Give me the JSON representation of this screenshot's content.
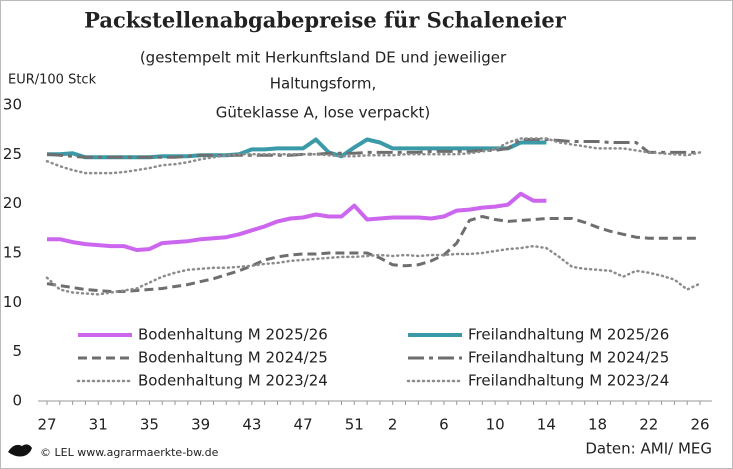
{
  "chart_data": {
    "type": "line",
    "title": "Packstellenabgabepreise für Schaleneier",
    "subtitle": [
      "(gestempelt mit Herkunftsland DE und jeweiliger",
      "Haltungsform,",
      "Güteklasse A, lose verpackt)"
    ],
    "y_label": "EUR/100 Stck",
    "source": "Daten: AMI/ MEG",
    "footer": "© LEL www.agrarmaerkte-bw.de",
    "categories": [
      "27",
      null,
      null,
      null,
      "31",
      null,
      null,
      null,
      "35",
      null,
      null,
      null,
      "39",
      null,
      null,
      null,
      "43",
      null,
      null,
      null,
      "47",
      null,
      null,
      null,
      "51",
      null,
      null,
      "2",
      null,
      null,
      null,
      "6",
      null,
      null,
      null,
      "10",
      null,
      null,
      null,
      "14",
      null,
      null,
      null,
      "18",
      null,
      null,
      null,
      "22",
      null,
      null,
      null,
      "26"
    ],
    "ylim": [
      0,
      30
    ],
    "yticks": [
      0,
      5,
      10,
      15,
      20,
      25,
      30
    ],
    "grid": false,
    "series": [
      {
        "name": "Bodenhaltung M 2025/26",
        "color": "#cc66ee",
        "style": "solid",
        "width": 4,
        "values": [
          16.4,
          16.4,
          16.1,
          15.9,
          15.8,
          15.7,
          15.7,
          15.3,
          15.4,
          16.0,
          16.1,
          16.2,
          16.4,
          16.5,
          16.6,
          16.9,
          17.3,
          17.7,
          18.2,
          18.5,
          18.6,
          18.9,
          18.7,
          18.7,
          19.8,
          18.4,
          18.5,
          18.6,
          18.6,
          18.6,
          18.5,
          18.7,
          19.3,
          19.4,
          19.6,
          19.7,
          19.9,
          21.0,
          20.3,
          20.3,
          null,
          null,
          null,
          null,
          null,
          null,
          null,
          null,
          null,
          null,
          null,
          null
        ]
      },
      {
        "name": "Freilandhaltung M 2025/26",
        "color": "#3a9aa8",
        "style": "solid",
        "width": 4,
        "values": [
          25.0,
          25.0,
          25.1,
          24.7,
          24.7,
          24.7,
          24.7,
          24.7,
          24.7,
          24.8,
          24.8,
          24.8,
          24.9,
          24.9,
          24.9,
          25.0,
          25.5,
          25.5,
          25.6,
          25.6,
          25.6,
          26.5,
          25.2,
          24.8,
          25.7,
          26.5,
          26.2,
          25.6,
          25.6,
          25.6,
          25.6,
          25.6,
          25.6,
          25.6,
          25.6,
          25.6,
          25.6,
          26.2,
          26.2,
          26.2,
          null,
          null,
          null,
          null,
          null,
          null,
          null,
          null,
          null,
          null,
          null,
          null
        ]
      },
      {
        "name": "Bodenhaltung M 2024/25",
        "color": "#6e6e6e",
        "style": "dashed",
        "width": 3,
        "values": [
          11.9,
          11.7,
          11.5,
          11.3,
          11.2,
          11.1,
          11.1,
          11.2,
          11.3,
          11.4,
          11.6,
          11.8,
          12.1,
          12.4,
          12.8,
          13.2,
          13.7,
          14.3,
          14.6,
          14.8,
          14.9,
          14.9,
          15.0,
          15.0,
          15.0,
          15.0,
          14.5,
          13.8,
          13.7,
          13.8,
          14.2,
          14.8,
          16.0,
          18.3,
          18.7,
          18.4,
          18.2,
          18.3,
          18.4,
          18.5,
          18.5,
          18.5,
          18.1,
          17.6,
          17.2,
          16.9,
          16.6,
          16.5,
          16.5,
          16.5,
          16.5,
          16.5
        ]
      },
      {
        "name": "Freilandhaltung M 2024/25",
        "color": "#6e6e6e",
        "style": "dashdot",
        "width": 3,
        "values": [
          25.0,
          24.9,
          24.8,
          24.7,
          24.7,
          24.7,
          24.7,
          24.7,
          24.7,
          24.7,
          24.7,
          24.8,
          24.9,
          24.9,
          24.9,
          24.9,
          24.9,
          24.9,
          24.9,
          24.9,
          25.0,
          25.0,
          25.1,
          25.1,
          25.1,
          25.2,
          25.2,
          25.2,
          25.2,
          25.2,
          25.3,
          25.3,
          25.3,
          25.3,
          25.4,
          25.4,
          25.6,
          26.5,
          26.5,
          26.5,
          26.4,
          26.3,
          26.3,
          26.3,
          26.2,
          26.2,
          26.2,
          25.2,
          25.2,
          25.2,
          25.2,
          25.2
        ]
      },
      {
        "name": "Bodenhaltung M 2023/24",
        "color": "#8c8c8c",
        "style": "dotted",
        "width": 2.5,
        "values": [
          12.5,
          11.3,
          11.0,
          10.9,
          10.8,
          11.0,
          11.2,
          11.4,
          12.0,
          12.6,
          13.0,
          13.3,
          13.4,
          13.5,
          13.5,
          13.6,
          13.7,
          13.9,
          14.0,
          14.2,
          14.3,
          14.4,
          14.5,
          14.6,
          14.6,
          14.7,
          14.8,
          14.7,
          14.8,
          14.7,
          14.8,
          14.8,
          14.9,
          14.9,
          15.0,
          15.2,
          15.4,
          15.5,
          15.7,
          15.5,
          14.6,
          13.6,
          13.4,
          13.3,
          13.2,
          12.6,
          13.2,
          13.0,
          12.7,
          12.3,
          11.3,
          11.9
        ]
      },
      {
        "name": "Freilandhaltung M 2023/24",
        "color": "#8c8c8c",
        "style": "dotted",
        "width": 2.5,
        "values": [
          24.3,
          23.8,
          23.4,
          23.1,
          23.1,
          23.1,
          23.2,
          23.4,
          23.6,
          23.9,
          24.0,
          24.2,
          24.5,
          24.7,
          24.9,
          25.0,
          25.0,
          25.0,
          25.0,
          25.0,
          25.0,
          25.0,
          24.9,
          24.8,
          24.8,
          24.9,
          24.9,
          24.9,
          25.0,
          25.0,
          25.0,
          25.0,
          25.0,
          25.1,
          25.3,
          25.5,
          26.2,
          26.6,
          26.6,
          26.6,
          26.2,
          26.0,
          25.8,
          25.6,
          25.6,
          25.6,
          25.4,
          25.2,
          25.1,
          25.0,
          24.9,
          25.2
        ]
      }
    ]
  }
}
